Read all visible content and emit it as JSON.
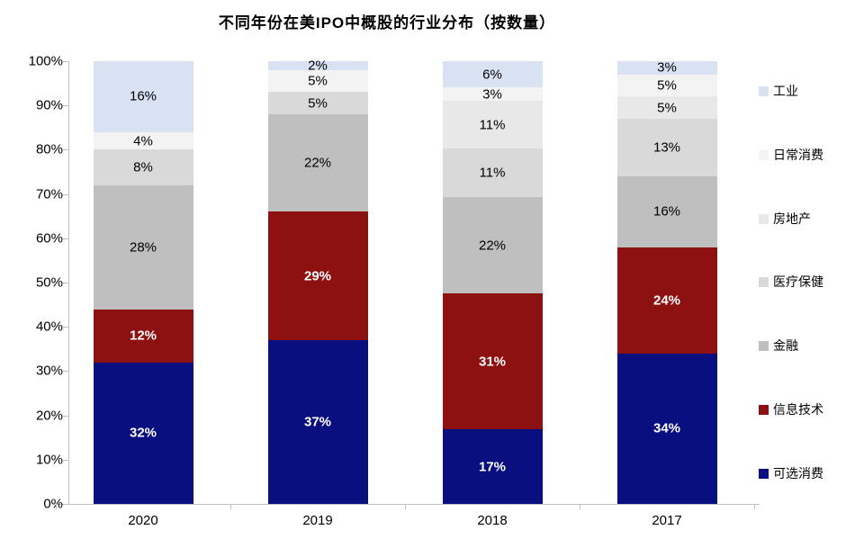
{
  "chart_data": {
    "type": "bar",
    "stacked": true,
    "title": "不同年份在美IPO中概股的行业分布（按数量）",
    "categories": [
      "2020",
      "2019",
      "2018",
      "2017"
    ],
    "series": [
      {
        "name": "可选消费",
        "color": "#0a0f80",
        "label_color": "#ffffff",
        "label_bold": true,
        "values": [
          32,
          37,
          17,
          34
        ]
      },
      {
        "name": "信息技术",
        "color": "#8e1111",
        "label_color": "#ffffff",
        "label_bold": true,
        "values": [
          12,
          29,
          31,
          24
        ]
      },
      {
        "name": "金融",
        "color": "#bfbfbf",
        "label_color": "#000000",
        "label_bold": false,
        "values": [
          28,
          22,
          22,
          16
        ]
      },
      {
        "name": "医疗保健",
        "color": "#d9d9d9",
        "label_color": "#000000",
        "label_bold": false,
        "values": [
          8,
          5,
          11,
          13
        ]
      },
      {
        "name": "房地产",
        "color": "#e8e8e8",
        "label_color": "#000000",
        "label_bold": false,
        "values": [
          0,
          0,
          11,
          5
        ]
      },
      {
        "name": "日常消费",
        "color": "#f3f3f3",
        "label_color": "#000000",
        "label_bold": false,
        "values": [
          4,
          5,
          3,
          5
        ]
      },
      {
        "name": "工业",
        "color": "#d9e2f3",
        "label_color": "#000000",
        "label_bold": false,
        "values": [
          16,
          2,
          6,
          3
        ]
      }
    ],
    "value_suffix": "%",
    "ylim": [
      0,
      100
    ],
    "y_ticks": [
      "0%",
      "10%",
      "20%",
      "30%",
      "40%",
      "50%",
      "60%",
      "70%",
      "80%",
      "90%",
      "100%"
    ],
    "legend_position": "right",
    "legend_order": [
      "工业",
      "日常消费",
      "房地产",
      "医疗保健",
      "金融",
      "信息技术",
      "可选消费"
    ],
    "grid": false,
    "axis_color": "#c0c0c0"
  }
}
